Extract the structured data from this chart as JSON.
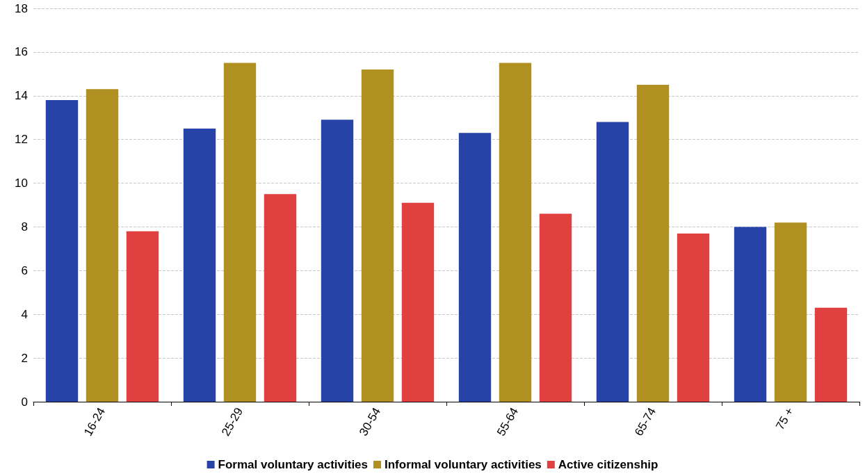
{
  "chart_data": {
    "type": "bar",
    "categories": [
      "16-24",
      "25-29",
      "30-54",
      "55-64",
      "65-74",
      "75 +"
    ],
    "series": [
      {
        "name": "Formal voluntary activities",
        "color": "#2743a8",
        "values": [
          13.8,
          12.5,
          12.9,
          12.3,
          12.8,
          8.0
        ]
      },
      {
        "name": "Informal voluntary activities",
        "color": "#b09020",
        "values": [
          14.3,
          15.5,
          15.2,
          15.5,
          14.5,
          8.2
        ]
      },
      {
        "name": "Active citizenship",
        "color": "#e04040",
        "values": [
          7.8,
          9.5,
          9.1,
          8.6,
          7.7,
          4.3
        ]
      }
    ],
    "ylim": [
      0,
      18
    ],
    "yticks": [
      0,
      2,
      4,
      6,
      8,
      10,
      12,
      14,
      16,
      18
    ],
    "grid": "y",
    "legend": "bottom"
  }
}
